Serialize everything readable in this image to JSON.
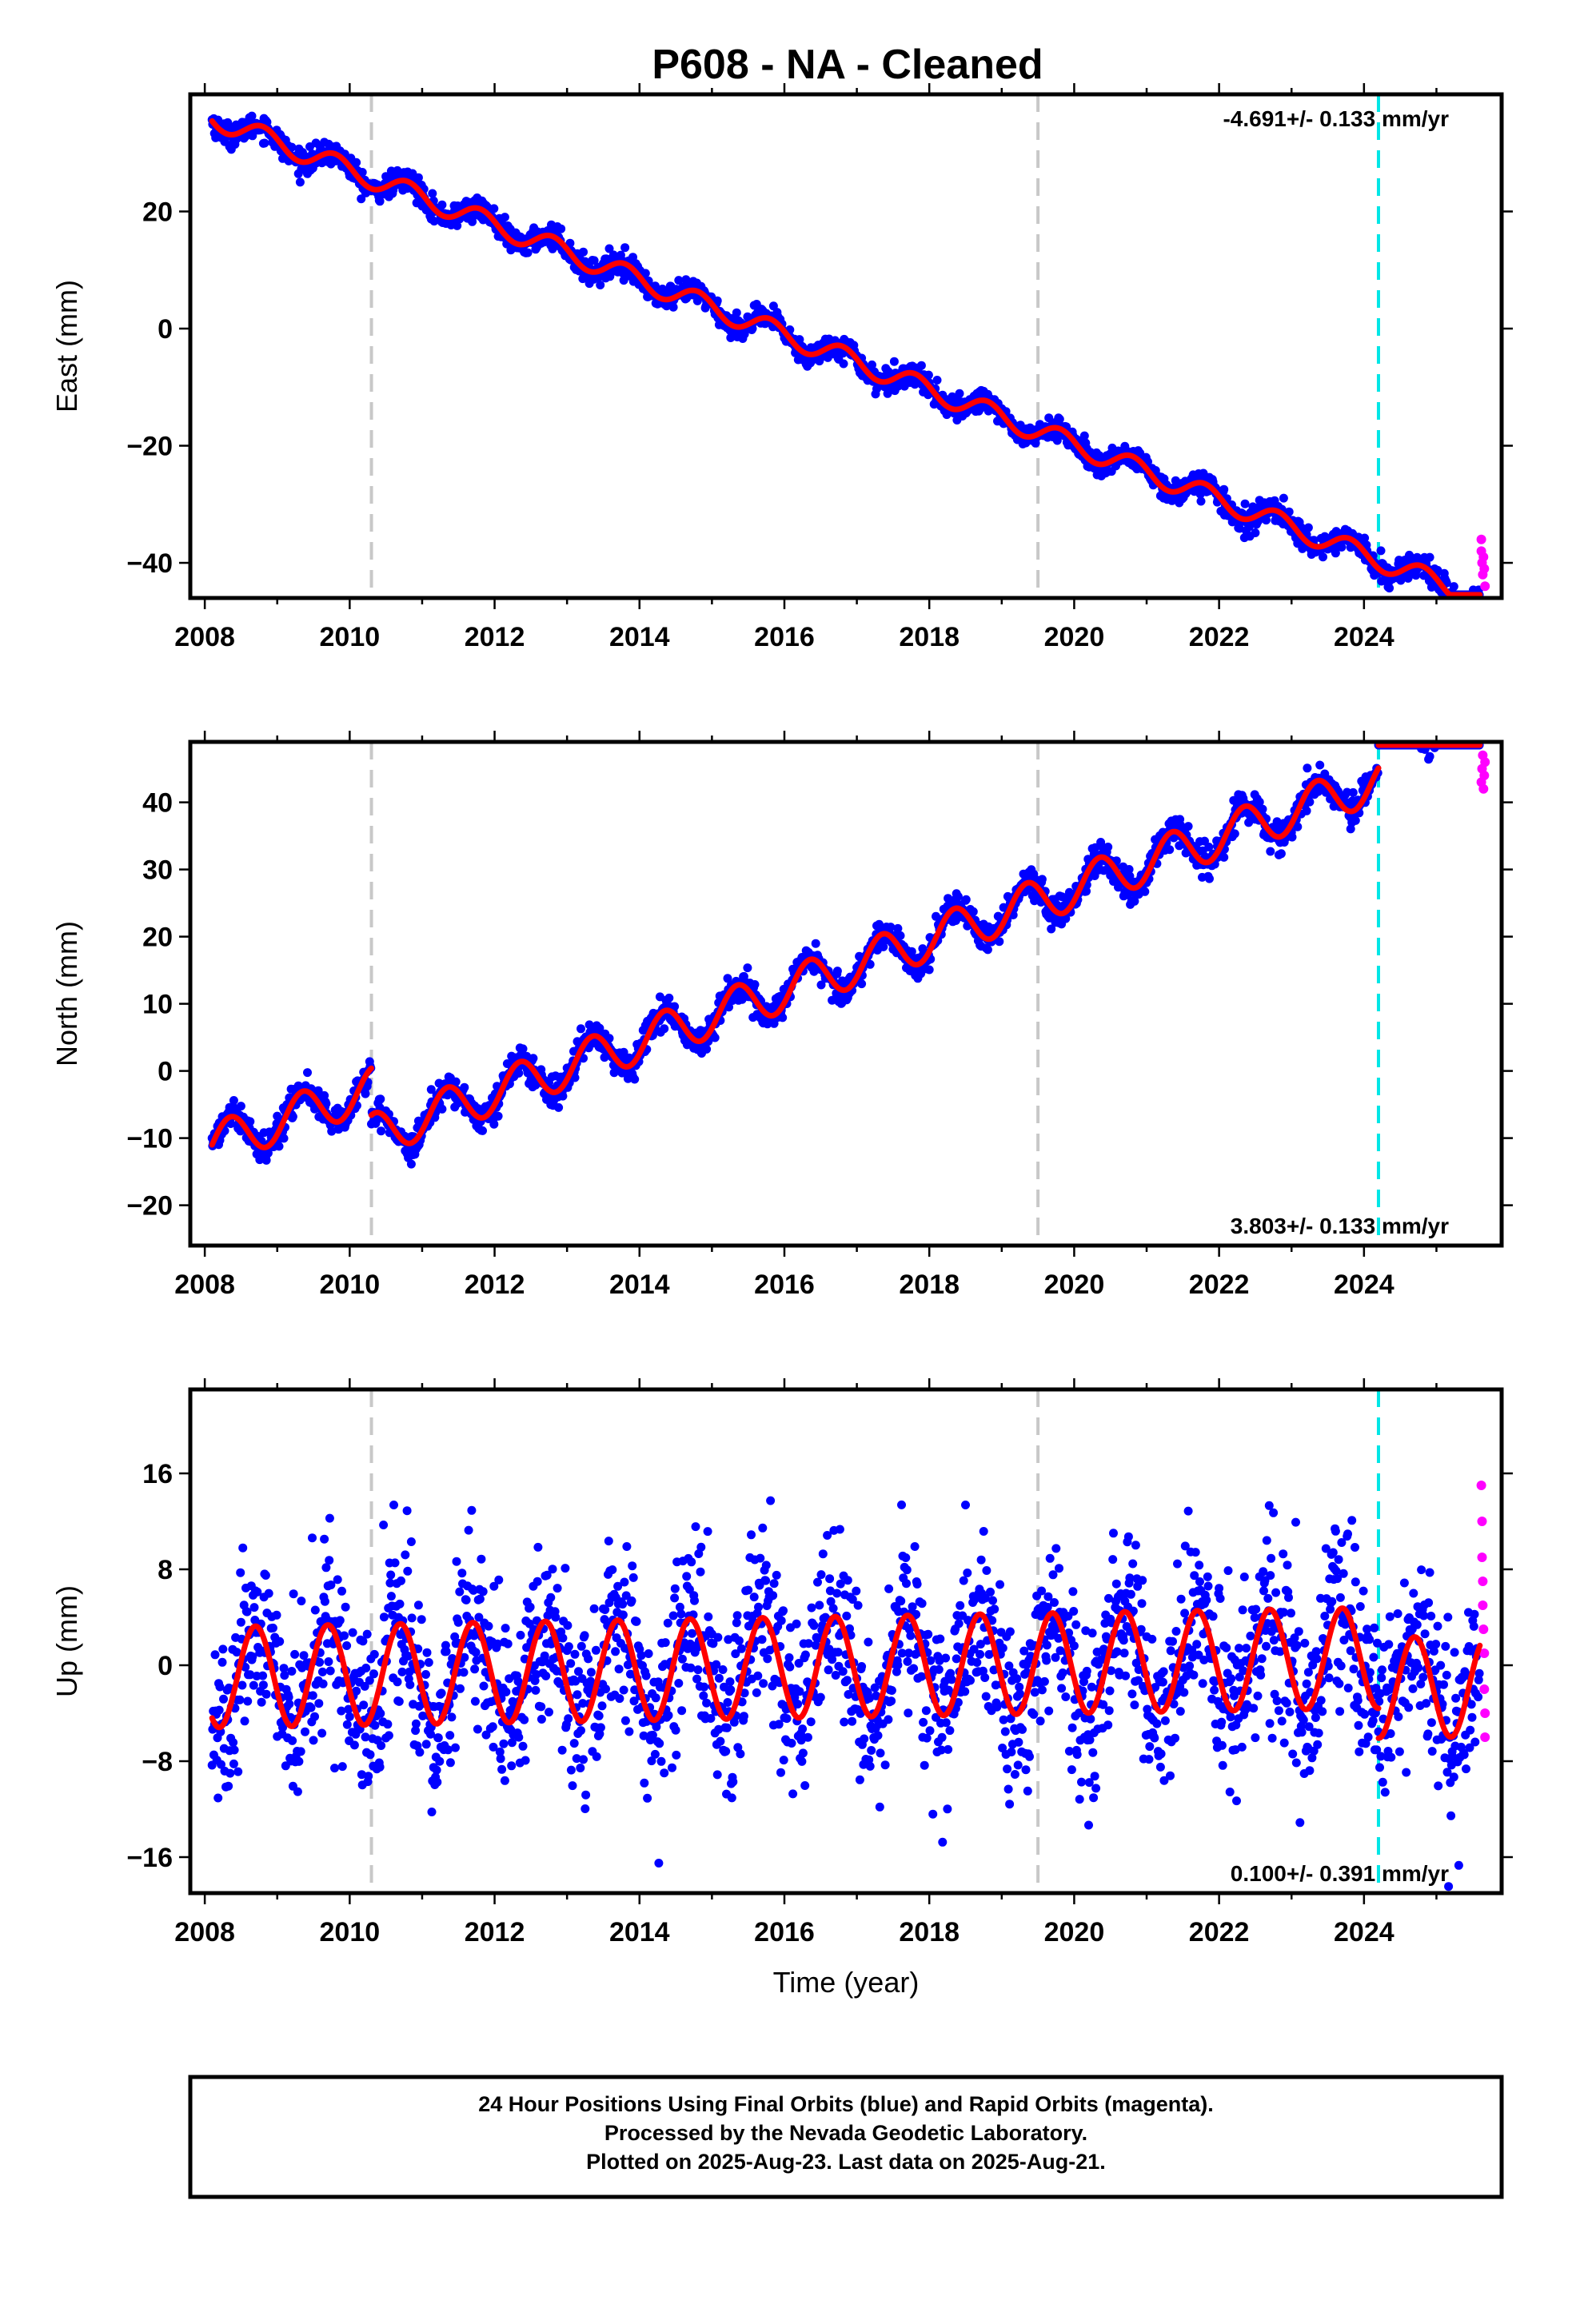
{
  "title": "P608  - NA - Cleaned",
  "xlabel": "Time (year)",
  "footer": {
    "line1": "24 Hour Positions Using Final Orbits (blue) and Rapid Orbits (magenta).",
    "line2": "Processed by the Nevada Geodetic Laboratory.",
    "line3": "Plotted on 2025-Aug-23. Last data on 2025-Aug-21."
  },
  "colors": {
    "final_orbits": "#0000ff",
    "rapid_orbits": "#ff00ff",
    "model": "#ff0000",
    "equipment_change": "#c8c8c8",
    "earthquake_offset": "#00e6e6"
  },
  "chart_data": [
    {
      "type": "scatter",
      "component": "East",
      "ylabel": "East (mm)",
      "rate_label": "-4.691+/- 0.133 mm/yr",
      "xlim": [
        2007.8,
        2025.9
      ],
      "ylim": [
        -46,
        40
      ],
      "xticks": [
        2008,
        2010,
        2012,
        2014,
        2016,
        2018,
        2020,
        2022,
        2024
      ],
      "yticks": [
        -40,
        -20,
        0,
        20
      ],
      "vlines_gray": [
        2010.3,
        2019.5
      ],
      "vline_cyan": 2024.2,
      "model": {
        "start": 2008.1,
        "end": 2025.6,
        "intercept": 36,
        "rate": -4.691,
        "annual_amp": 1.8,
        "annual_phase": 0.55,
        "offsets": []
      },
      "scatter_sd": 1.0,
      "rapid_points": [
        [
          2025.62,
          -36
        ],
        [
          2025.62,
          -38
        ],
        [
          2025.63,
          -40
        ],
        [
          2025.64,
          -42
        ],
        [
          2025.65,
          -39
        ],
        [
          2025.66,
          -41
        ],
        [
          2025.67,
          -44
        ]
      ],
      "series": [
        {
          "name": "Final Orbits",
          "color": "#0000ff"
        },
        {
          "name": "Rapid Orbits",
          "color": "#ff00ff"
        },
        {
          "name": "Model",
          "color": "#ff0000"
        }
      ]
    },
    {
      "type": "scatter",
      "component": "North",
      "ylabel": "North (mm)",
      "rate_label": "3.803+/- 0.133 mm/yr",
      "xlim": [
        2007.8,
        2025.9
      ],
      "ylim": [
        -26,
        49
      ],
      "xticks": [
        2008,
        2010,
        2012,
        2014,
        2016,
        2018,
        2020,
        2022,
        2024
      ],
      "yticks": [
        -20,
        -10,
        0,
        10,
        20,
        30,
        40
      ],
      "vlines_gray": [
        2010.3,
        2019.5
      ],
      "vline_cyan": 2024.2,
      "model": {
        "start": 2008.1,
        "end": 2025.6,
        "intercept": -11,
        "rate": 3.803,
        "annual_amp": 3.2,
        "annual_phase": 0.1,
        "offsets": [
          [
            2010.3,
            -7.0
          ],
          [
            2024.2,
            6.5
          ]
        ]
      },
      "scatter_sd": 1.1,
      "rapid_points": [
        [
          2025.62,
          43
        ],
        [
          2025.63,
          45
        ],
        [
          2025.64,
          47
        ],
        [
          2025.65,
          42
        ],
        [
          2025.66,
          44
        ],
        [
          2025.67,
          46
        ]
      ],
      "series": [
        {
          "name": "Final Orbits",
          "color": "#0000ff"
        },
        {
          "name": "Rapid Orbits",
          "color": "#ff00ff"
        },
        {
          "name": "Model",
          "color": "#ff0000"
        }
      ]
    },
    {
      "type": "scatter",
      "component": "Up",
      "ylabel": "Up (mm)",
      "rate_label": "0.100+/- 0.391 mm/yr",
      "xlim": [
        2007.8,
        2025.9
      ],
      "ylim": [
        -19,
        23
      ],
      "xticks": [
        2008,
        2010,
        2012,
        2014,
        2016,
        2018,
        2020,
        2022,
        2024
      ],
      "yticks": [
        -16,
        -8,
        0,
        8,
        16
      ],
      "vlines_gray": [
        2010.3,
        2019.5
      ],
      "vline_cyan": 2024.2,
      "model": {
        "start": 2008.1,
        "end": 2025.6,
        "intercept": -1,
        "rate": 0.1,
        "annual_amp": 4.2,
        "annual_phase": 0.45,
        "offsets": [
          [
            2024.2,
            -2.5
          ]
        ]
      },
      "scatter_sd": 3.6,
      "rapid_points": [
        [
          2025.62,
          15
        ],
        [
          2025.63,
          12
        ],
        [
          2025.63,
          9
        ],
        [
          2025.64,
          7
        ],
        [
          2025.64,
          5
        ],
        [
          2025.65,
          3
        ],
        [
          2025.66,
          1
        ],
        [
          2025.66,
          -2
        ],
        [
          2025.67,
          -4
        ],
        [
          2025.67,
          -6
        ]
      ],
      "series": [
        {
          "name": "Final Orbits",
          "color": "#0000ff"
        },
        {
          "name": "Rapid Orbits",
          "color": "#ff00ff"
        },
        {
          "name": "Model",
          "color": "#ff0000"
        }
      ]
    }
  ]
}
